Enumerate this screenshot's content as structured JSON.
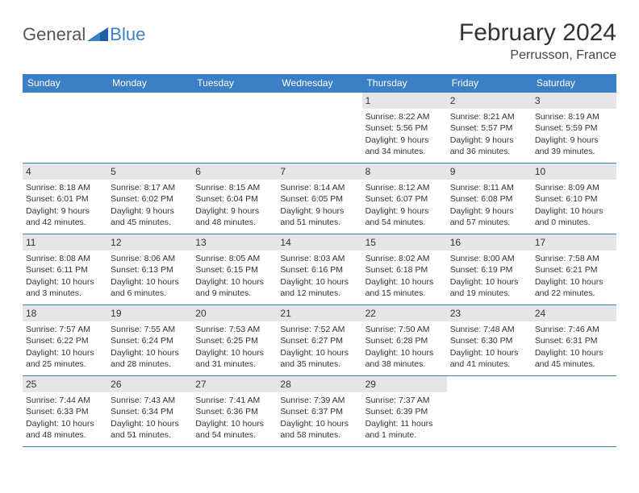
{
  "brand": {
    "part1": "General",
    "part2": "Blue"
  },
  "title": "February 2024",
  "location": "Perrusson, France",
  "colors": {
    "accent": "#3b7fc4",
    "header_text": "#ffffff",
    "daynum_bg": "#e6e6e6",
    "text": "#333333",
    "background": "#ffffff"
  },
  "day_headers": [
    "Sunday",
    "Monday",
    "Tuesday",
    "Wednesday",
    "Thursday",
    "Friday",
    "Saturday"
  ],
  "weeks": [
    [
      {
        "n": "",
        "sr": "",
        "ss": "",
        "dl": ""
      },
      {
        "n": "",
        "sr": "",
        "ss": "",
        "dl": ""
      },
      {
        "n": "",
        "sr": "",
        "ss": "",
        "dl": ""
      },
      {
        "n": "",
        "sr": "",
        "ss": "",
        "dl": ""
      },
      {
        "n": "1",
        "sr": "Sunrise: 8:22 AM",
        "ss": "Sunset: 5:56 PM",
        "dl": "Daylight: 9 hours and 34 minutes."
      },
      {
        "n": "2",
        "sr": "Sunrise: 8:21 AM",
        "ss": "Sunset: 5:57 PM",
        "dl": "Daylight: 9 hours and 36 minutes."
      },
      {
        "n": "3",
        "sr": "Sunrise: 8:19 AM",
        "ss": "Sunset: 5:59 PM",
        "dl": "Daylight: 9 hours and 39 minutes."
      }
    ],
    [
      {
        "n": "4",
        "sr": "Sunrise: 8:18 AM",
        "ss": "Sunset: 6:01 PM",
        "dl": "Daylight: 9 hours and 42 minutes."
      },
      {
        "n": "5",
        "sr": "Sunrise: 8:17 AM",
        "ss": "Sunset: 6:02 PM",
        "dl": "Daylight: 9 hours and 45 minutes."
      },
      {
        "n": "6",
        "sr": "Sunrise: 8:15 AM",
        "ss": "Sunset: 6:04 PM",
        "dl": "Daylight: 9 hours and 48 minutes."
      },
      {
        "n": "7",
        "sr": "Sunrise: 8:14 AM",
        "ss": "Sunset: 6:05 PM",
        "dl": "Daylight: 9 hours and 51 minutes."
      },
      {
        "n": "8",
        "sr": "Sunrise: 8:12 AM",
        "ss": "Sunset: 6:07 PM",
        "dl": "Daylight: 9 hours and 54 minutes."
      },
      {
        "n": "9",
        "sr": "Sunrise: 8:11 AM",
        "ss": "Sunset: 6:08 PM",
        "dl": "Daylight: 9 hours and 57 minutes."
      },
      {
        "n": "10",
        "sr": "Sunrise: 8:09 AM",
        "ss": "Sunset: 6:10 PM",
        "dl": "Daylight: 10 hours and 0 minutes."
      }
    ],
    [
      {
        "n": "11",
        "sr": "Sunrise: 8:08 AM",
        "ss": "Sunset: 6:11 PM",
        "dl": "Daylight: 10 hours and 3 minutes."
      },
      {
        "n": "12",
        "sr": "Sunrise: 8:06 AM",
        "ss": "Sunset: 6:13 PM",
        "dl": "Daylight: 10 hours and 6 minutes."
      },
      {
        "n": "13",
        "sr": "Sunrise: 8:05 AM",
        "ss": "Sunset: 6:15 PM",
        "dl": "Daylight: 10 hours and 9 minutes."
      },
      {
        "n": "14",
        "sr": "Sunrise: 8:03 AM",
        "ss": "Sunset: 6:16 PM",
        "dl": "Daylight: 10 hours and 12 minutes."
      },
      {
        "n": "15",
        "sr": "Sunrise: 8:02 AM",
        "ss": "Sunset: 6:18 PM",
        "dl": "Daylight: 10 hours and 15 minutes."
      },
      {
        "n": "16",
        "sr": "Sunrise: 8:00 AM",
        "ss": "Sunset: 6:19 PM",
        "dl": "Daylight: 10 hours and 19 minutes."
      },
      {
        "n": "17",
        "sr": "Sunrise: 7:58 AM",
        "ss": "Sunset: 6:21 PM",
        "dl": "Daylight: 10 hours and 22 minutes."
      }
    ],
    [
      {
        "n": "18",
        "sr": "Sunrise: 7:57 AM",
        "ss": "Sunset: 6:22 PM",
        "dl": "Daylight: 10 hours and 25 minutes."
      },
      {
        "n": "19",
        "sr": "Sunrise: 7:55 AM",
        "ss": "Sunset: 6:24 PM",
        "dl": "Daylight: 10 hours and 28 minutes."
      },
      {
        "n": "20",
        "sr": "Sunrise: 7:53 AM",
        "ss": "Sunset: 6:25 PM",
        "dl": "Daylight: 10 hours and 31 minutes."
      },
      {
        "n": "21",
        "sr": "Sunrise: 7:52 AM",
        "ss": "Sunset: 6:27 PM",
        "dl": "Daylight: 10 hours and 35 minutes."
      },
      {
        "n": "22",
        "sr": "Sunrise: 7:50 AM",
        "ss": "Sunset: 6:28 PM",
        "dl": "Daylight: 10 hours and 38 minutes."
      },
      {
        "n": "23",
        "sr": "Sunrise: 7:48 AM",
        "ss": "Sunset: 6:30 PM",
        "dl": "Daylight: 10 hours and 41 minutes."
      },
      {
        "n": "24",
        "sr": "Sunrise: 7:46 AM",
        "ss": "Sunset: 6:31 PM",
        "dl": "Daylight: 10 hours and 45 minutes."
      }
    ],
    [
      {
        "n": "25",
        "sr": "Sunrise: 7:44 AM",
        "ss": "Sunset: 6:33 PM",
        "dl": "Daylight: 10 hours and 48 minutes."
      },
      {
        "n": "26",
        "sr": "Sunrise: 7:43 AM",
        "ss": "Sunset: 6:34 PM",
        "dl": "Daylight: 10 hours and 51 minutes."
      },
      {
        "n": "27",
        "sr": "Sunrise: 7:41 AM",
        "ss": "Sunset: 6:36 PM",
        "dl": "Daylight: 10 hours and 54 minutes."
      },
      {
        "n": "28",
        "sr": "Sunrise: 7:39 AM",
        "ss": "Sunset: 6:37 PM",
        "dl": "Daylight: 10 hours and 58 minutes."
      },
      {
        "n": "29",
        "sr": "Sunrise: 7:37 AM",
        "ss": "Sunset: 6:39 PM",
        "dl": "Daylight: 11 hours and 1 minute."
      },
      {
        "n": "",
        "sr": "",
        "ss": "",
        "dl": ""
      },
      {
        "n": "",
        "sr": "",
        "ss": "",
        "dl": ""
      }
    ]
  ]
}
